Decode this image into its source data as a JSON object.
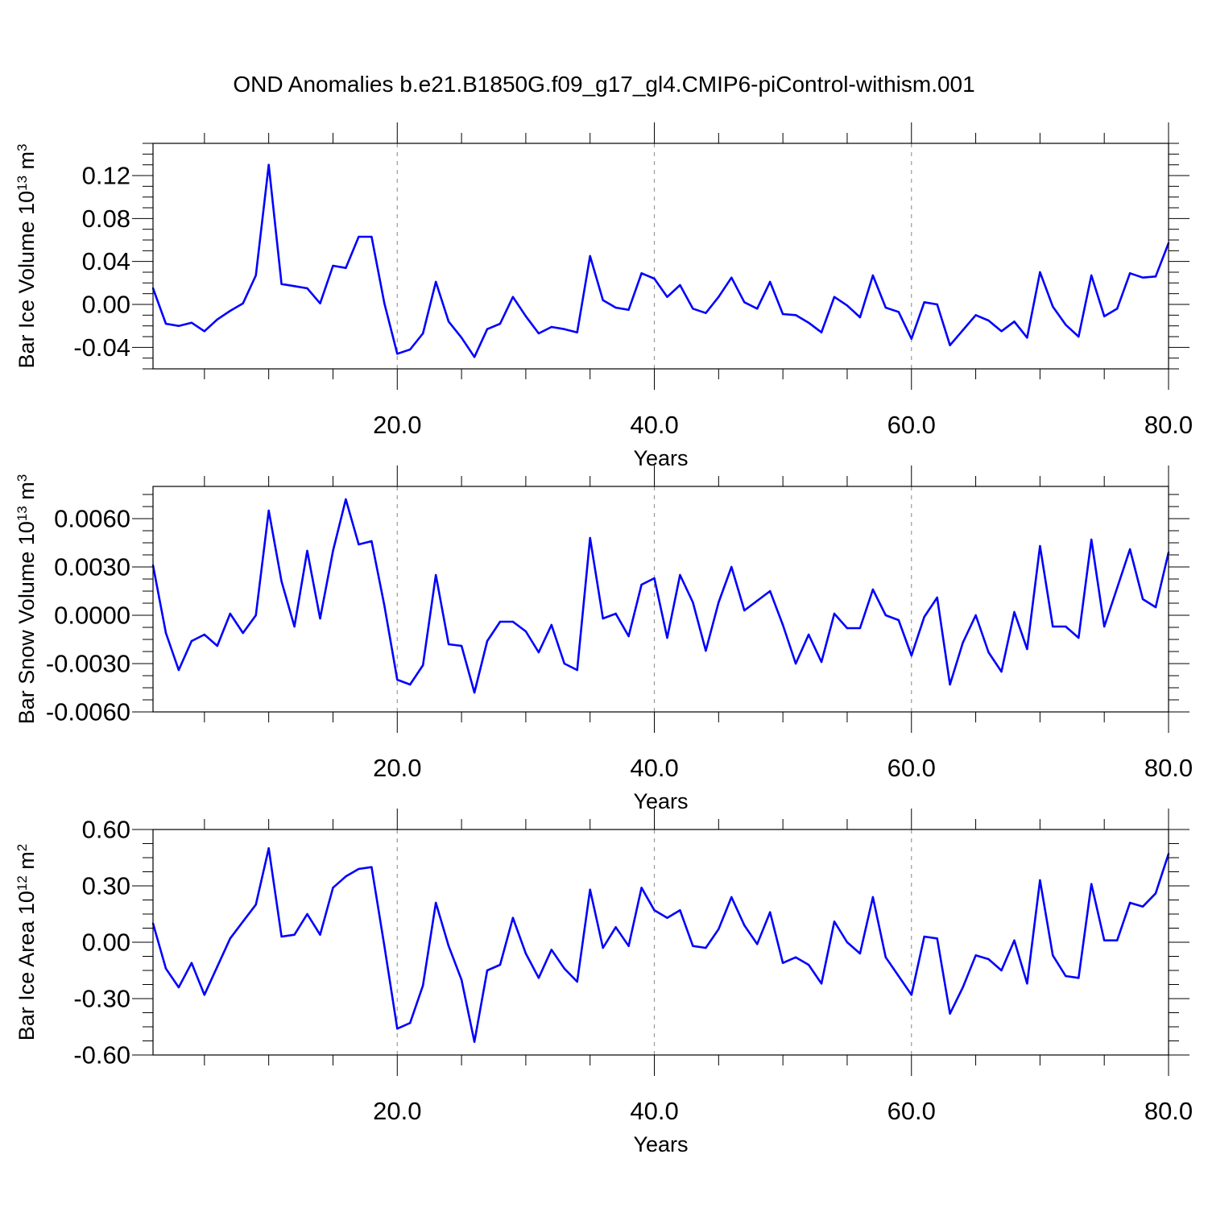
{
  "title": "OND Anomalies b.e21.B1850G.f09_g17_gl4.CMIP6-piControl-withism.001",
  "colors": {
    "line": "#0000ff",
    "axis": "#000000",
    "grid": "#999999"
  },
  "chart_data": [
    {
      "type": "line",
      "ylabel": {
        "text": "Bar Ice Volume 10",
        "exponent": "13",
        "unit_base": " m",
        "unit_exponent": "3"
      },
      "xlabel": "Years",
      "xlim": [
        1,
        80
      ],
      "ylim": [
        -0.06,
        0.15
      ],
      "xticks": [
        20,
        40,
        60,
        80
      ],
      "xtick_labels": [
        "20.0",
        "40.0",
        "60.0",
        "80.0"
      ],
      "yticks": [
        -0.04,
        0.0,
        0.04,
        0.08,
        0.12
      ],
      "ytick_labels": [
        "-0.04",
        "0.00",
        "0.04",
        "0.08",
        "0.12"
      ],
      "series": [
        {
          "x": [
            1,
            2,
            3,
            4,
            5,
            6,
            7,
            8,
            9,
            10,
            11,
            12,
            13,
            14,
            15,
            16,
            17,
            18,
            19,
            20,
            21,
            22,
            23,
            24,
            25,
            26,
            27,
            28,
            29,
            30,
            31,
            32,
            33,
            34,
            35,
            36,
            37,
            38,
            39,
            40,
            41,
            42,
            43,
            44,
            45,
            46,
            47,
            48,
            49,
            50,
            51,
            52,
            53,
            54,
            55,
            56,
            57,
            58,
            59,
            60,
            61,
            62,
            63,
            64,
            65,
            66,
            67,
            68,
            69,
            70,
            71,
            72,
            73,
            74,
            75,
            76,
            77,
            78,
            79,
            80
          ],
          "values": [
            0.015,
            -0.018,
            -0.02,
            -0.017,
            -0.025,
            -0.014,
            -0.006,
            0.001,
            0.027,
            0.13,
            0.019,
            0.017,
            0.015,
            0.001,
            0.036,
            0.034,
            0.063,
            0.063,
            0.001,
            -0.046,
            -0.042,
            -0.027,
            0.021,
            -0.016,
            -0.031,
            -0.049,
            -0.023,
            -0.018,
            0.007,
            -0.011,
            -0.027,
            -0.021,
            -0.023,
            -0.026,
            0.045,
            0.004,
            -0.003,
            -0.005,
            0.029,
            0.024,
            0.007,
            0.018,
            -0.004,
            -0.008,
            0.007,
            0.025,
            0.002,
            -0.004,
            0.021,
            -0.009,
            -0.01,
            -0.017,
            -0.026,
            0.007,
            -0.001,
            -0.012,
            0.027,
            -0.003,
            -0.007,
            -0.032,
            0.002,
            0.0,
            -0.038,
            -0.024,
            -0.01,
            -0.015,
            -0.025,
            -0.016,
            -0.031,
            0.03,
            -0.002,
            -0.019,
            -0.03,
            0.027,
            -0.011,
            -0.004,
            0.029,
            0.025,
            0.026,
            0.057
          ]
        }
      ]
    },
    {
      "type": "line",
      "ylabel": {
        "text": "Bar Snow Volume 10",
        "exponent": "13",
        "unit_base": " m",
        "unit_exponent": "3"
      },
      "xlabel": "Years",
      "xlim": [
        1,
        80
      ],
      "ylim": [
        -0.006,
        0.008
      ],
      "xticks": [
        20,
        40,
        60,
        80
      ],
      "xtick_labels": [
        "20.0",
        "40.0",
        "60.0",
        "80.0"
      ],
      "yticks": [
        -0.006,
        -0.003,
        0.0,
        0.003,
        0.006
      ],
      "ytick_labels": [
        "-0.0060",
        "-0.0030",
        "0.0000",
        "0.0030",
        "0.0060"
      ],
      "series": [
        {
          "x": [
            1,
            2,
            3,
            4,
            5,
            6,
            7,
            8,
            9,
            10,
            11,
            12,
            13,
            14,
            15,
            16,
            17,
            18,
            19,
            20,
            21,
            22,
            23,
            24,
            25,
            26,
            27,
            28,
            29,
            30,
            31,
            32,
            33,
            34,
            35,
            36,
            37,
            38,
            39,
            40,
            41,
            42,
            43,
            44,
            45,
            46,
            47,
            48,
            49,
            50,
            51,
            52,
            53,
            54,
            55,
            56,
            57,
            58,
            59,
            60,
            61,
            62,
            63,
            64,
            65,
            66,
            67,
            68,
            69,
            70,
            71,
            72,
            73,
            74,
            75,
            76,
            77,
            78,
            79,
            80
          ],
          "values": [
            0.0031,
            -0.0011,
            -0.0034,
            -0.0016,
            -0.0012,
            -0.0019,
            0.0001,
            -0.0011,
            0.0,
            0.0065,
            0.0021,
            -0.0007,
            0.004,
            -0.0002,
            0.004,
            0.0072,
            0.0044,
            0.0046,
            0.0006,
            -0.004,
            -0.0043,
            -0.0031,
            0.0025,
            -0.0018,
            -0.0019,
            -0.0048,
            -0.0016,
            -0.0004,
            -0.0004,
            -0.001,
            -0.0023,
            -0.0006,
            -0.003,
            -0.0034,
            0.0048,
            -0.0002,
            0.0001,
            -0.0013,
            0.0019,
            0.0023,
            -0.0014,
            0.0025,
            0.0008,
            -0.0022,
            0.0008,
            0.003,
            0.0003,
            0.0009,
            0.0015,
            -0.0006,
            -0.003,
            -0.0012,
            -0.0029,
            0.0001,
            -0.0008,
            -0.0008,
            0.0016,
            0.0,
            -0.0003,
            -0.0025,
            -0.0001,
            0.0011,
            -0.0043,
            -0.0017,
            0.0,
            -0.0023,
            -0.0035,
            0.0002,
            -0.0021,
            0.0043,
            -0.0007,
            -0.0007,
            -0.0014,
            0.0047,
            -0.0007,
            0.0017,
            0.0041,
            0.001,
            0.0005,
            0.0039
          ]
        }
      ]
    },
    {
      "type": "line",
      "ylabel": {
        "text": "Bar Ice Area 10",
        "exponent": "12",
        "unit_base": " m",
        "unit_exponent": "2"
      },
      "xlabel": "Years",
      "xlim": [
        1,
        80
      ],
      "ylim": [
        -0.6,
        0.6
      ],
      "xticks": [
        20,
        40,
        60,
        80
      ],
      "xtick_labels": [
        "20.0",
        "40.0",
        "60.0",
        "80.0"
      ],
      "yticks": [
        -0.6,
        -0.3,
        0.0,
        0.3,
        0.6
      ],
      "ytick_labels": [
        "-0.60",
        "-0.30",
        "0.00",
        "0.30",
        "0.60"
      ],
      "series": [
        {
          "x": [
            1,
            2,
            3,
            4,
            5,
            6,
            7,
            8,
            9,
            10,
            11,
            12,
            13,
            14,
            15,
            16,
            17,
            18,
            19,
            20,
            21,
            22,
            23,
            24,
            25,
            26,
            27,
            28,
            29,
            30,
            31,
            32,
            33,
            34,
            35,
            36,
            37,
            38,
            39,
            40,
            41,
            42,
            43,
            44,
            45,
            46,
            47,
            48,
            49,
            50,
            51,
            52,
            53,
            54,
            55,
            56,
            57,
            58,
            59,
            60,
            61,
            62,
            63,
            64,
            65,
            66,
            67,
            68,
            69,
            70,
            71,
            72,
            73,
            74,
            75,
            76,
            77,
            78,
            79,
            80
          ],
          "values": [
            0.1,
            -0.14,
            -0.24,
            -0.11,
            -0.28,
            -0.13,
            0.02,
            0.11,
            0.2,
            0.5,
            0.03,
            0.04,
            0.15,
            0.04,
            0.29,
            0.35,
            0.39,
            0.4,
            -0.02,
            -0.46,
            -0.43,
            -0.23,
            0.21,
            -0.02,
            -0.2,
            -0.53,
            -0.15,
            -0.12,
            0.13,
            -0.06,
            -0.19,
            -0.04,
            -0.14,
            -0.21,
            0.28,
            -0.03,
            0.08,
            -0.02,
            0.29,
            0.17,
            0.13,
            0.17,
            -0.02,
            -0.03,
            0.07,
            0.24,
            0.09,
            -0.01,
            0.16,
            -0.11,
            -0.08,
            -0.12,
            -0.22,
            0.11,
            0.0,
            -0.06,
            0.24,
            -0.08,
            -0.18,
            -0.28,
            0.03,
            0.02,
            -0.38,
            -0.24,
            -0.07,
            -0.09,
            -0.15,
            0.01,
            -0.22,
            0.33,
            -0.07,
            -0.18,
            -0.19,
            0.31,
            0.01,
            0.01,
            0.21,
            0.19,
            0.26,
            0.47
          ]
        }
      ]
    }
  ]
}
